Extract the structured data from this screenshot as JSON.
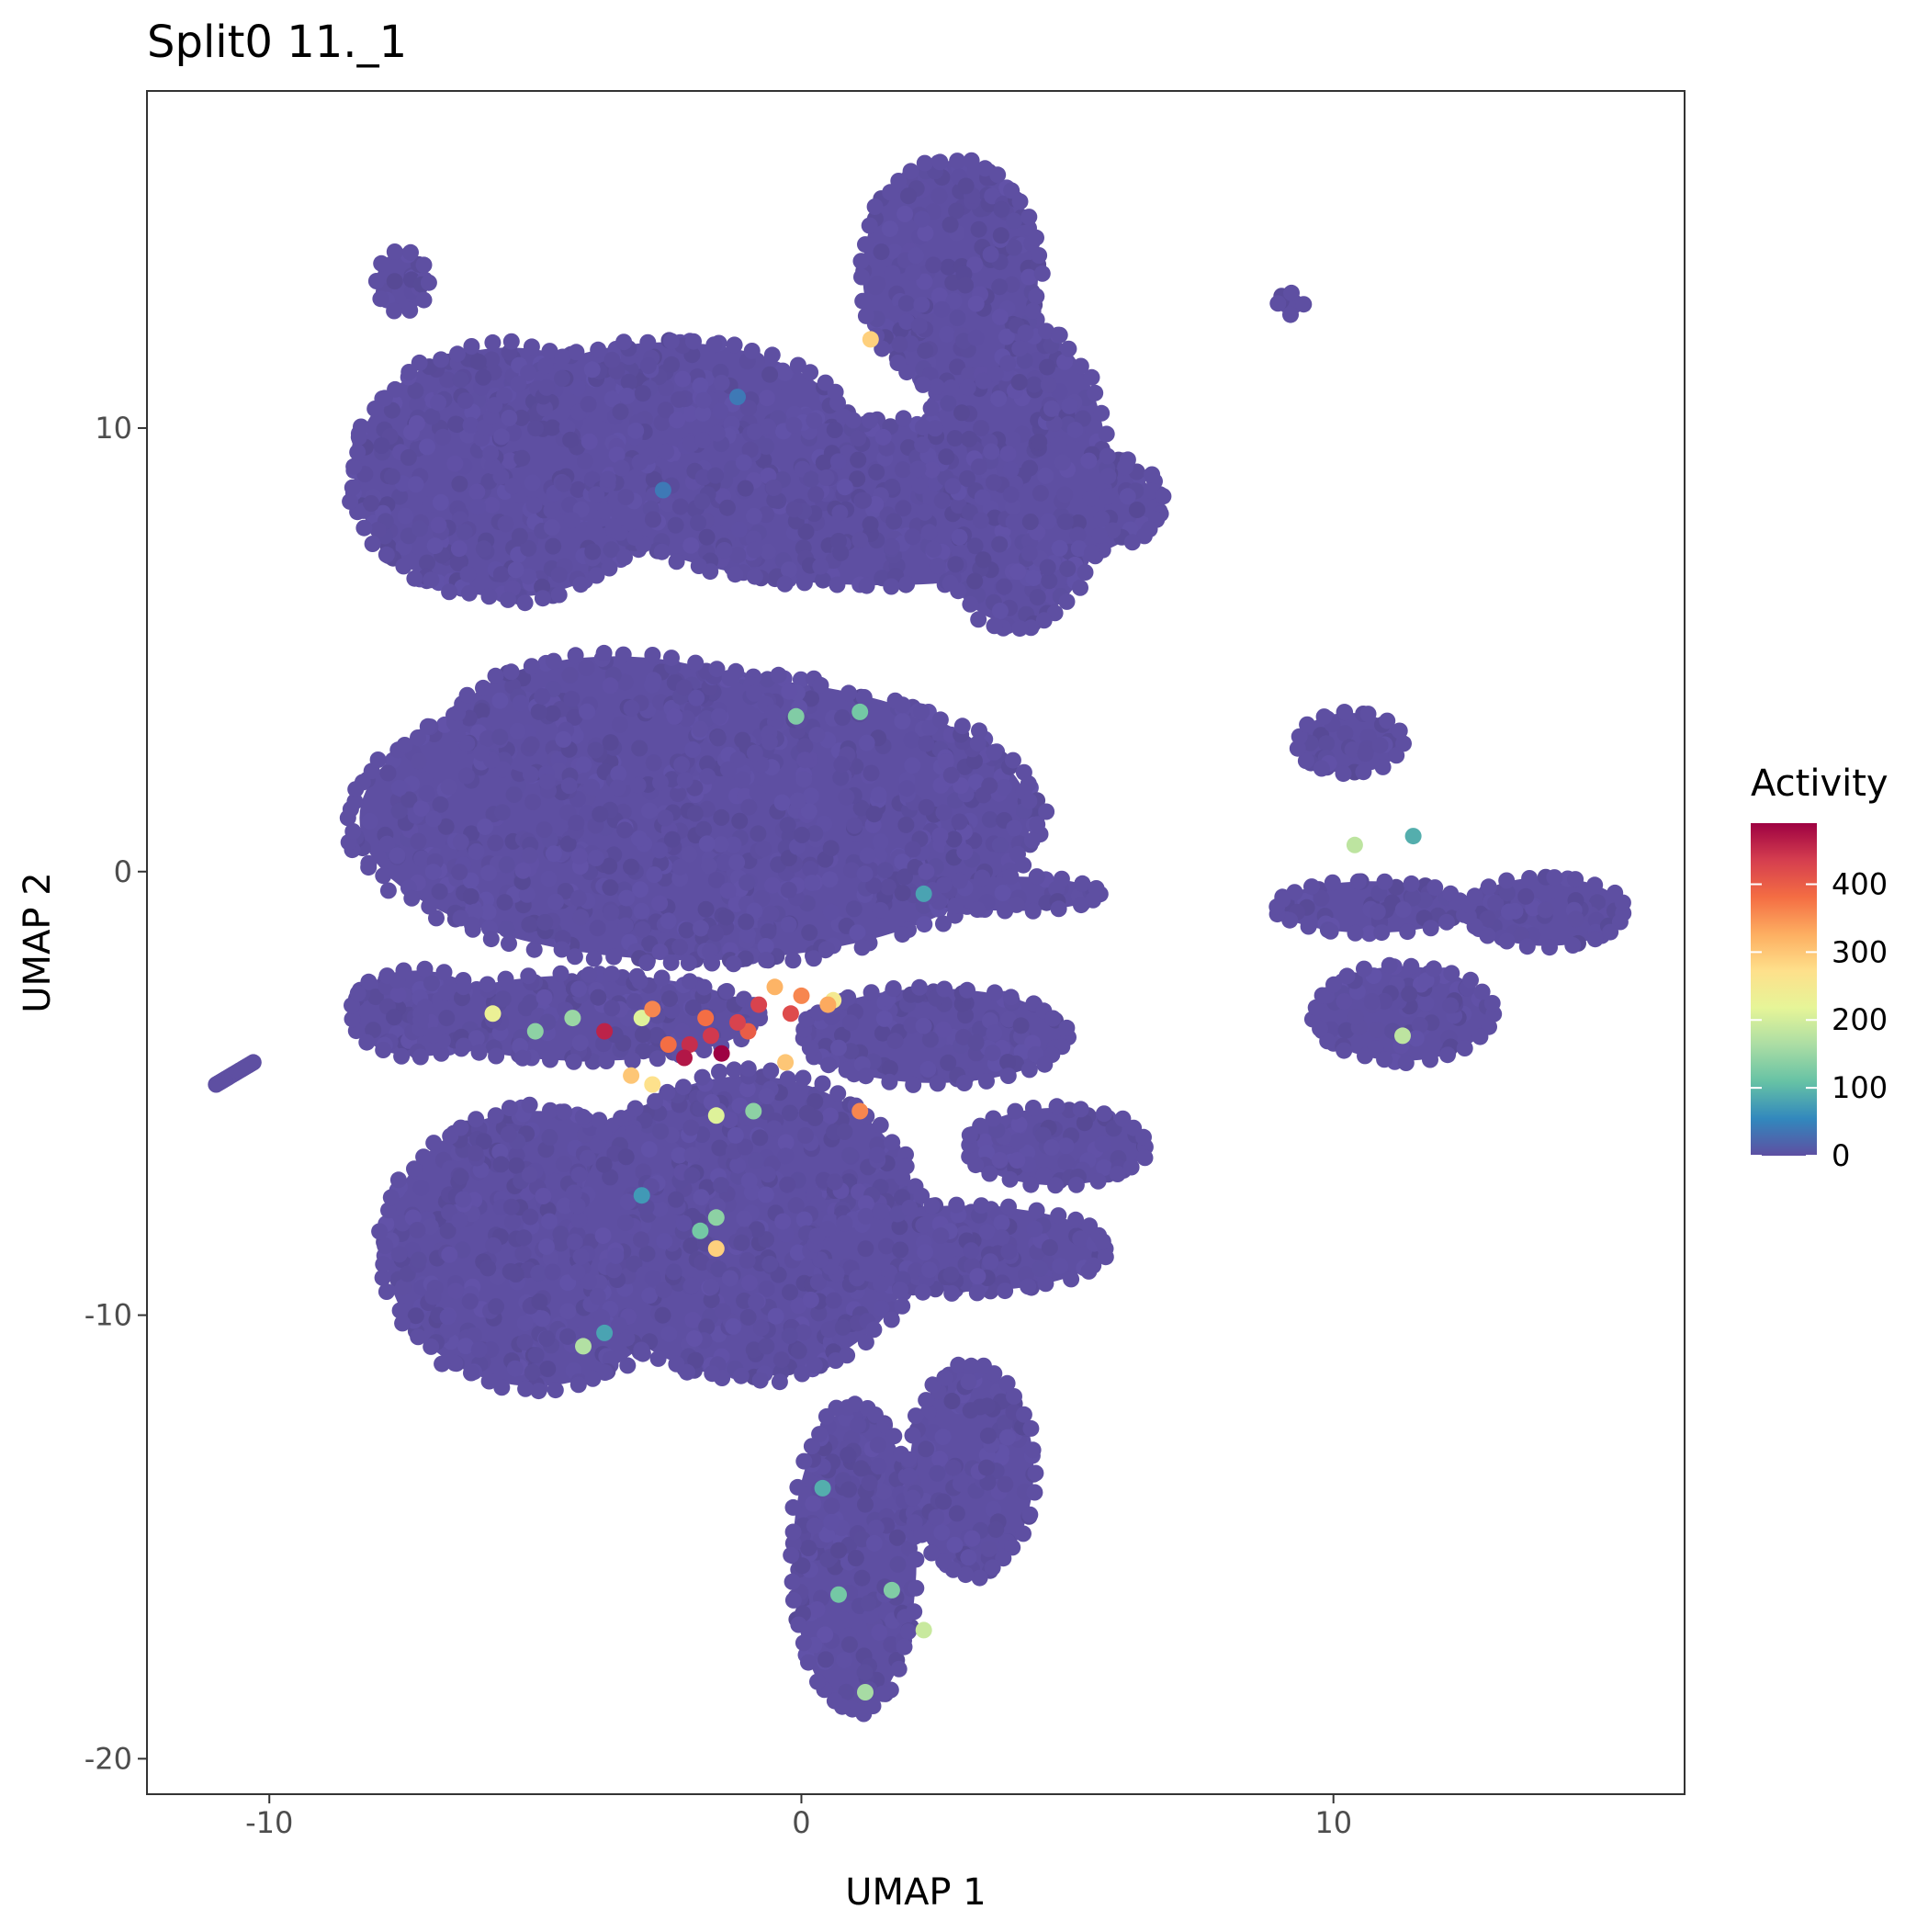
{
  "chart_data": {
    "type": "scatter",
    "title": "Split0 11._1",
    "xlabel": "UMAP 1",
    "ylabel": "UMAP 2",
    "xlim": [
      -12.3,
      16.6
    ],
    "ylim": [
      -20.8,
      17.6
    ],
    "x_ticks": [
      -10,
      0,
      10
    ],
    "x_tick_labels": [
      "-10",
      "0",
      "10"
    ],
    "y_ticks": [
      -20,
      -10,
      0,
      10
    ],
    "y_tick_labels": [
      "-20",
      "-10",
      "0",
      "10"
    ],
    "grid": false,
    "legend": {
      "title": "Activity",
      "placement": "right",
      "min": 0,
      "max": 490,
      "ticks": [
        0,
        100,
        200,
        300,
        400
      ],
      "tick_labels": [
        "0",
        "100",
        "200",
        "300",
        "400"
      ],
      "colors": [
        "#5E4FA2",
        "#3288BD",
        "#66C2A5",
        "#ABDDA4",
        "#E6F598",
        "#FEE08B",
        "#FDAE61",
        "#F46D43",
        "#D53E4F",
        "#9E0142"
      ]
    },
    "base_color": "#5E4FA2",
    "clusters": [
      {
        "shape": "ellipse",
        "cx": -5.5,
        "cy": 9.0,
        "rx": 3.0,
        "ry": 2.9
      },
      {
        "shape": "ellipse",
        "cx": -2.5,
        "cy": 9.8,
        "rx": 3.5,
        "ry": 2.2
      },
      {
        "shape": "ellipse",
        "cx": 1.5,
        "cy": 8.3,
        "rx": 5.3,
        "ry": 1.9
      },
      {
        "shape": "ellipse",
        "cx": 4.0,
        "cy": 9.0,
        "rx": 1.8,
        "ry": 3.5
      },
      {
        "shape": "ellipse",
        "cx": 2.8,
        "cy": 13.5,
        "rx": 1.7,
        "ry": 2.6
      },
      {
        "shape": "ellipse",
        "cx": -7.5,
        "cy": 13.3,
        "rx": 0.5,
        "ry": 0.7
      },
      {
        "shape": "ellipse",
        "cx": 9.2,
        "cy": 12.8,
        "rx": 0.25,
        "ry": 0.25
      },
      {
        "shape": "ellipse",
        "cx": -2.0,
        "cy": 1.2,
        "rx": 6.5,
        "ry": 3.3
      },
      {
        "shape": "ellipse",
        "cx": -3.5,
        "cy": 3.4,
        "rx": 3.0,
        "ry": 1.5
      },
      {
        "shape": "ellipse",
        "cx": -7.2,
        "cy": -3.2,
        "rx": 1.3,
        "ry": 1.0
      },
      {
        "shape": "ellipse",
        "cx": -4.0,
        "cy": -3.3,
        "rx": 3.2,
        "ry": 1.0
      },
      {
        "shape": "ellipse",
        "cx": 2.5,
        "cy": -3.7,
        "rx": 2.5,
        "ry": 1.1
      },
      {
        "shape": "ellipse",
        "cx": 4.0,
        "cy": -0.5,
        "rx": 1.6,
        "ry": 0.4
      },
      {
        "shape": "ellipse",
        "cx": -5.0,
        "cy": -8.5,
        "rx": 2.9,
        "ry": 3.2
      },
      {
        "shape": "ellipse",
        "cx": -1.0,
        "cy": -8.0,
        "rx": 3.3,
        "ry": 3.5
      },
      {
        "shape": "ellipse",
        "cx": 3.0,
        "cy": -8.5,
        "rx": 2.8,
        "ry": 1.0
      },
      {
        "shape": "ellipse",
        "cx": 4.8,
        "cy": -6.2,
        "rx": 1.7,
        "ry": 0.9
      },
      {
        "shape": "ellipse",
        "cx": 1.0,
        "cy": -15.5,
        "rx": 1.2,
        "ry": 3.5
      },
      {
        "shape": "ellipse",
        "cx": 3.2,
        "cy": -13.5,
        "rx": 1.2,
        "ry": 2.4
      },
      {
        "shape": "ellipse",
        "cx": 10.3,
        "cy": 2.9,
        "rx": 1.0,
        "ry": 0.7
      },
      {
        "shape": "ellipse",
        "cx": 10.7,
        "cy": -0.8,
        "rx": 1.8,
        "ry": 0.6
      },
      {
        "shape": "ellipse",
        "cx": 11.3,
        "cy": -3.2,
        "rx": 1.7,
        "ry": 1.1
      },
      {
        "shape": "ellipse",
        "cx": 14.0,
        "cy": -0.9,
        "rx": 1.5,
        "ry": 0.8
      },
      {
        "shape": "segment",
        "x1": -11.0,
        "y1": -4.8,
        "x2": -10.3,
        "y2": -4.3,
        "r": 0.18
      }
    ],
    "high_points": [
      {
        "x": -1.5,
        "y": -4.1,
        "v": 490
      },
      {
        "x": -2.2,
        "y": -4.2,
        "v": 470
      },
      {
        "x": -2.1,
        "y": -3.9,
        "v": 450
      },
      {
        "x": -1.7,
        "y": -3.7,
        "v": 440
      },
      {
        "x": -1.2,
        "y": -3.4,
        "v": 430
      },
      {
        "x": -0.8,
        "y": -3.0,
        "v": 430
      },
      {
        "x": -0.2,
        "y": -3.2,
        "v": 420
      },
      {
        "x": -1.0,
        "y": -3.6,
        "v": 400
      },
      {
        "x": -2.5,
        "y": -3.9,
        "v": 380
      },
      {
        "x": -3.7,
        "y": -3.6,
        "v": 460
      },
      {
        "x": -2.8,
        "y": -3.1,
        "v": 360
      },
      {
        "x": 0.0,
        "y": -2.8,
        "v": 360
      },
      {
        "x": 0.5,
        "y": -3.0,
        "v": 330
      },
      {
        "x": -0.5,
        "y": -2.6,
        "v": 320
      },
      {
        "x": -1.8,
        "y": -3.3,
        "v": 380
      },
      {
        "x": 1.1,
        "y": -5.4,
        "v": 360
      },
      {
        "x": -0.3,
        "y": -4.3,
        "v": 300
      },
      {
        "x": -3.2,
        "y": -4.6,
        "v": 300
      },
      {
        "x": -2.8,
        "y": -4.8,
        "v": 270
      },
      {
        "x": 1.3,
        "y": 12.0,
        "v": 290
      },
      {
        "x": -1.6,
        "y": -8.5,
        "v": 290
      },
      {
        "x": -5.8,
        "y": -3.2,
        "v": 230
      },
      {
        "x": -1.6,
        "y": -5.5,
        "v": 210
      },
      {
        "x": -4.1,
        "y": -10.7,
        "v": 170
      },
      {
        "x": 2.3,
        "y": -17.1,
        "v": 190
      },
      {
        "x": 1.2,
        "y": -18.5,
        "v": 160
      },
      {
        "x": 10.4,
        "y": 0.6,
        "v": 180
      },
      {
        "x": 11.3,
        "y": -3.7,
        "v": 180
      },
      {
        "x": -0.1,
        "y": 3.5,
        "v": 130
      },
      {
        "x": 1.1,
        "y": 3.6,
        "v": 120
      },
      {
        "x": 1.7,
        "y": -16.2,
        "v": 130
      },
      {
        "x": 0.7,
        "y": -16.3,
        "v": 120
      },
      {
        "x": -1.9,
        "y": -8.1,
        "v": 120
      },
      {
        "x": -1.6,
        "y": -7.8,
        "v": 140
      },
      {
        "x": -0.9,
        "y": -5.4,
        "v": 140
      },
      {
        "x": 0.6,
        "y": -2.9,
        "v": 250
      },
      {
        "x": -3.0,
        "y": -3.3,
        "v": 210
      },
      {
        "x": -4.3,
        "y": -3.3,
        "v": 150
      },
      {
        "x": -5.0,
        "y": -3.6,
        "v": 140
      },
      {
        "x": 11.5,
        "y": 0.8,
        "v": 90
      },
      {
        "x": 0.4,
        "y": -13.9,
        "v": 90
      },
      {
        "x": -3.7,
        "y": -10.4,
        "v": 80
      },
      {
        "x": -3.0,
        "y": -7.3,
        "v": 70
      },
      {
        "x": 2.3,
        "y": -0.5,
        "v": 80
      },
      {
        "x": -2.6,
        "y": 8.6,
        "v": 40
      },
      {
        "x": -1.2,
        "y": 10.7,
        "v": 40
      }
    ]
  }
}
